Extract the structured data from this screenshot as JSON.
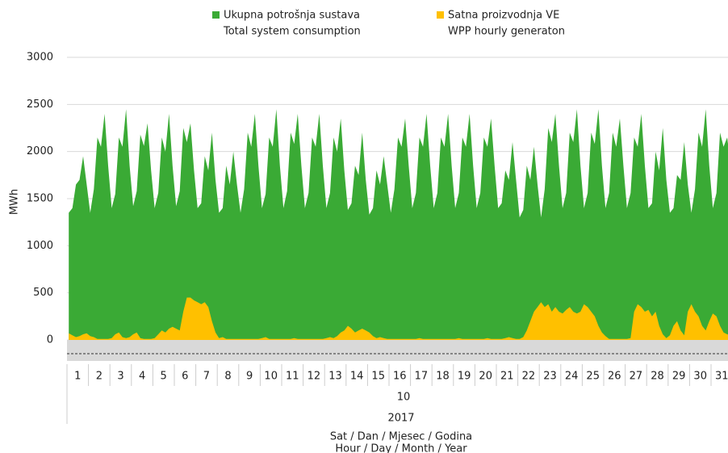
{
  "chart_data": {
    "type": "area",
    "ylabel": "MWh",
    "categories": [
      "1",
      "2",
      "3",
      "4",
      "5",
      "6",
      "7",
      "8",
      "9",
      "10",
      "11",
      "12",
      "13",
      "14",
      "15",
      "16",
      "17",
      "18",
      "19",
      "20",
      "21",
      "22",
      "23",
      "24",
      "25",
      "26",
      "27",
      "28",
      "29",
      "30",
      "31"
    ],
    "month": "10",
    "year": "2017",
    "xlabel": [
      "Sat / Dan / Mjesec / Godina",
      "Hour / Day / Month / Year"
    ],
    "ylim": [
      0,
      3000
    ],
    "yticks": [
      0,
      500,
      1000,
      1500,
      2000,
      2500,
      3000
    ],
    "grid": true,
    "series": [
      {
        "name": [
          "Ukupna potrošnja sustava",
          "Total system consumption"
        ],
        "color": "#3aaa35",
        "values": [
          [
            1350,
            1400,
            1650,
            1700,
            1950,
            1650
          ],
          [
            1350,
            1600,
            2150,
            2050,
            2400,
            1850
          ],
          [
            1400,
            1550,
            2150,
            2050,
            2450,
            1850
          ],
          [
            1420,
            1580,
            2180,
            2060,
            2300,
            1800
          ],
          [
            1400,
            1560,
            2150,
            2000,
            2400,
            1850
          ],
          [
            1420,
            1580,
            2250,
            2100,
            2300,
            1800
          ],
          [
            1400,
            1450,
            1950,
            1800,
            2200,
            1700
          ],
          [
            1350,
            1400,
            1850,
            1650,
            2000,
            1650
          ],
          [
            1350,
            1600,
            2200,
            2050,
            2400,
            1850
          ],
          [
            1400,
            1550,
            2150,
            2050,
            2450,
            1850
          ],
          [
            1400,
            1580,
            2200,
            2080,
            2400,
            1850
          ],
          [
            1400,
            1560,
            2150,
            2050,
            2400,
            1850
          ],
          [
            1400,
            1560,
            2150,
            2000,
            2350,
            1800
          ],
          [
            1380,
            1450,
            1850,
            1750,
            2200,
            1700
          ],
          [
            1330,
            1400,
            1800,
            1650,
            1950,
            1650
          ],
          [
            1350,
            1600,
            2150,
            2050,
            2350,
            1850
          ],
          [
            1400,
            1560,
            2150,
            2050,
            2400,
            1850
          ],
          [
            1400,
            1560,
            2150,
            2050,
            2400,
            1850
          ],
          [
            1400,
            1560,
            2150,
            2050,
            2400,
            1850
          ],
          [
            1400,
            1560,
            2150,
            2050,
            2350,
            1850
          ],
          [
            1400,
            1450,
            1800,
            1700,
            2100,
            1700
          ],
          [
            1300,
            1380,
            1850,
            1700,
            2050,
            1650
          ],
          [
            1300,
            1600,
            2250,
            2100,
            2400,
            1850
          ],
          [
            1400,
            1560,
            2200,
            2100,
            2450,
            1850
          ],
          [
            1400,
            1560,
            2200,
            2080,
            2450,
            1850
          ],
          [
            1400,
            1560,
            2200,
            2050,
            2350,
            1850
          ],
          [
            1400,
            1560,
            2150,
            2050,
            2400,
            1850
          ],
          [
            1400,
            1450,
            2000,
            1800,
            2250,
            1700
          ],
          [
            1350,
            1400,
            1750,
            1700,
            2100,
            1650
          ],
          [
            1350,
            1600,
            2200,
            2050,
            2450,
            1850
          ],
          [
            1400,
            1560,
            2200,
            2050,
            2150,
            1850
          ]
        ]
      },
      {
        "name": [
          "Satna proizvodnja VE",
          "WPP hourly generaton"
        ],
        "color": "#ffc000",
        "values": [
          [
            70,
            50,
            30,
            40,
            60,
            70
          ],
          [
            40,
            30,
            10,
            10,
            10,
            10
          ],
          [
            20,
            60,
            80,
            30,
            20,
            30
          ],
          [
            60,
            80,
            20,
            10,
            10,
            10
          ],
          [
            20,
            60,
            100,
            80,
            120,
            140
          ],
          [
            120,
            100,
            300,
            450,
            450,
            420
          ],
          [
            400,
            380,
            400,
            350,
            200,
            80
          ],
          [
            20,
            30,
            10,
            10,
            10,
            10
          ],
          [
            10,
            10,
            10,
            10,
            10,
            10
          ],
          [
            20,
            30,
            10,
            10,
            10,
            10
          ],
          [
            10,
            10,
            10,
            20,
            10,
            10
          ],
          [
            10,
            10,
            10,
            10,
            10,
            10
          ],
          [
            20,
            30,
            20,
            40,
            80,
            100
          ],
          [
            150,
            120,
            80,
            100,
            120,
            100
          ],
          [
            80,
            40,
            20,
            30,
            20,
            10
          ],
          [
            10,
            10,
            10,
            10,
            10,
            10
          ],
          [
            10,
            10,
            20,
            10,
            10,
            10
          ],
          [
            10,
            10,
            10,
            10,
            10,
            10
          ],
          [
            10,
            20,
            10,
            10,
            10,
            10
          ],
          [
            10,
            10,
            10,
            20,
            10,
            10
          ],
          [
            10,
            10,
            20,
            30,
            20,
            10
          ],
          [
            10,
            30,
            100,
            200,
            300,
            350
          ],
          [
            400,
            350,
            380,
            300,
            350,
            300
          ],
          [
            280,
            320,
            350,
            300,
            280,
            300
          ],
          [
            380,
            350,
            300,
            250,
            150,
            80
          ],
          [
            40,
            10,
            10,
            10,
            10,
            10
          ],
          [
            10,
            20,
            300,
            380,
            350,
            300
          ],
          [
            320,
            250,
            300,
            150,
            60,
            20
          ],
          [
            50,
            150,
            200,
            100,
            50,
            300
          ],
          [
            380,
            300,
            250,
            150,
            100,
            200
          ],
          [
            280,
            250,
            150,
            80,
            60,
            50
          ]
        ]
      }
    ]
  }
}
